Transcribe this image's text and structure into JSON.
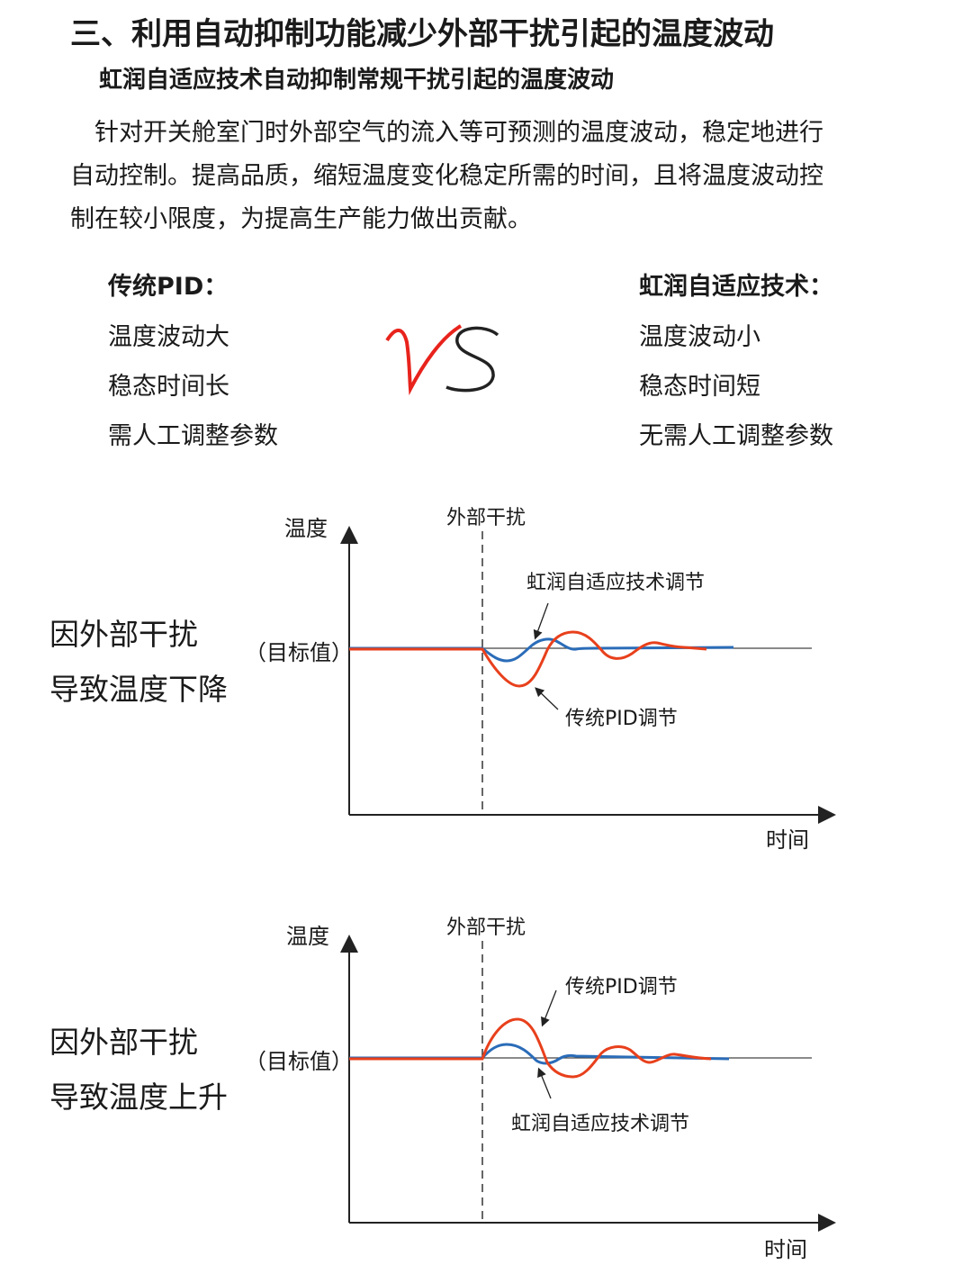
{
  "heading": "三、利用自动抑制功能减少外部干扰引起的温度波动",
  "subheading": "虹润自适应技术自动抑制常规干扰引起的温度波动",
  "paragraph": [
    "　针对开关舱室门时外部空气的流入等可预测的温度波动，稳定地进行",
    "自动控制。提高品质，缩短温度变化稳定所需的时间，且将温度波动控",
    "制在较小限度，为提高生产能力做出贡献。"
  ],
  "comparison": {
    "left": {
      "title": "传统PID：",
      "items": [
        "温度波动大",
        "稳态时间长",
        "需人工调整参数"
      ]
    },
    "vs": "VS",
    "right": {
      "title": "虹润自适应技术：",
      "items": [
        "温度波动小",
        "稳态时间短",
        "无需人工调整参数"
      ]
    }
  },
  "colors": {
    "pid": "#e8401c",
    "adaptive": "#2a6cb8",
    "vs_v": "#e8231c",
    "vs_s": "#222222"
  },
  "charts": [
    {
      "side_label": [
        "因外部干扰",
        "导致温度下降"
      ],
      "y_axis": "温度",
      "x_axis": "时间",
      "target": "（目标值）",
      "event": "外部干扰",
      "adaptive_label": "虹润自适应技术调节",
      "pid_label": "传统PID调节"
    },
    {
      "side_label": [
        "因外部干扰",
        "导致温度上升"
      ],
      "y_axis": "温度",
      "x_axis": "时间",
      "target": "（目标值）",
      "event": "外部干扰",
      "adaptive_label": "虹润自适应技术调节",
      "pid_label": "传统PID调节"
    }
  ]
}
